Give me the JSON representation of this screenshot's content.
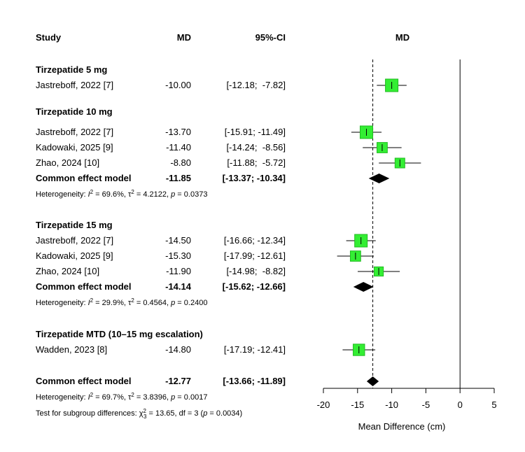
{
  "headers": {
    "study": "Study",
    "md": "MD",
    "ci": "95%-CI",
    "plot": "MD"
  },
  "chart_data": {
    "type": "forest",
    "xlabel": "Mean Difference (cm)",
    "xlim": [
      -20,
      5
    ],
    "xticks": [
      "-20",
      "-15",
      "-10",
      "-5",
      "0",
      "5"
    ],
    "overall_line": -12.77,
    "subgroups": [
      {
        "title": "Tirzepatide 5 mg",
        "studies": [
          {
            "name": "Jastreboff, 2022 [7]",
            "md_text": "-10.00",
            "ci_text": "[-12.18;  -7.82]",
            "md": -10.0,
            "lo": -12.18,
            "hi": -7.82,
            "weight": 1.0
          }
        ]
      },
      {
        "title": "Tirzepatide 10 mg",
        "studies": [
          {
            "name": "Jastreboff, 2022 [7]",
            "md_text": "-13.70",
            "ci_text": "[-15.91; -11.49]",
            "md": -13.7,
            "lo": -15.91,
            "hi": -11.49,
            "weight": 1.0
          },
          {
            "name": "Kadowaki, 2025 [9]",
            "md_text": "-11.40",
            "ci_text": "[-14.24;  -8.56]",
            "md": -11.4,
            "lo": -14.24,
            "hi": -8.56,
            "weight": 0.8
          },
          {
            "name": "Zhao, 2024 [10]",
            "md_text": "-8.80",
            "ci_text": "[-11.88;  -5.72]",
            "md": -8.8,
            "lo": -11.88,
            "hi": -5.72,
            "weight": 0.75
          }
        ],
        "pooled": {
          "label": "Common effect model",
          "md_text": "-11.85",
          "ci_text": "[-13.37; -10.34]",
          "md": -11.85,
          "lo": -13.37,
          "hi": -10.34
        },
        "heterogeneity": {
          "i2": "69.6%",
          "tau2": "4.2122",
          "p": "0.0373"
        }
      },
      {
        "title": "Tirzepatide 15 mg",
        "studies": [
          {
            "name": "Jastreboff, 2022 [7]",
            "md_text": "-14.50",
            "ci_text": "[-16.66; -12.34]",
            "md": -14.5,
            "lo": -16.66,
            "hi": -12.34,
            "weight": 1.0
          },
          {
            "name": "Kadowaki, 2025 [9]",
            "md_text": "-15.30",
            "ci_text": "[-17.99; -12.61]",
            "md": -15.3,
            "lo": -17.99,
            "hi": -12.61,
            "weight": 0.8
          },
          {
            "name": "Zhao, 2024 [10]",
            "md_text": "-11.90",
            "ci_text": "[-14.98;  -8.82]",
            "md": -11.9,
            "lo": -14.98,
            "hi": -8.82,
            "weight": 0.7
          }
        ],
        "pooled": {
          "label": "Common effect model",
          "md_text": "-14.14",
          "ci_text": "[-15.62; -12.66]",
          "md": -14.14,
          "lo": -15.62,
          "hi": -12.66
        },
        "heterogeneity": {
          "i2": "29.9%",
          "tau2": "0.4564",
          "p": "0.2400"
        }
      },
      {
        "title": "Tirzepatide MTD (10–15 mg escalation)",
        "studies": [
          {
            "name": "Wadden, 2023 [8]",
            "md_text": "-14.80",
            "ci_text": "[-17.19; -12.41]",
            "md": -14.8,
            "lo": -17.19,
            "hi": -12.41,
            "weight": 0.9
          }
        ]
      }
    ],
    "overall": {
      "label": "Common effect model",
      "md_text": "-12.77",
      "ci_text": "[-13.66; -11.89]",
      "md": -12.77,
      "lo": -13.66,
      "hi": -11.89,
      "heterogeneity": {
        "i2": "69.7%",
        "tau2": "3.8396",
        "p": "0.0017"
      },
      "subgroup_test": {
        "chi2": "13.65",
        "df": "3",
        "p": "0.0034"
      }
    },
    "colors": {
      "box": "#33ee33",
      "box_stroke": "#22bb22",
      "diamond": "#000000",
      "line": "#000000"
    }
  }
}
